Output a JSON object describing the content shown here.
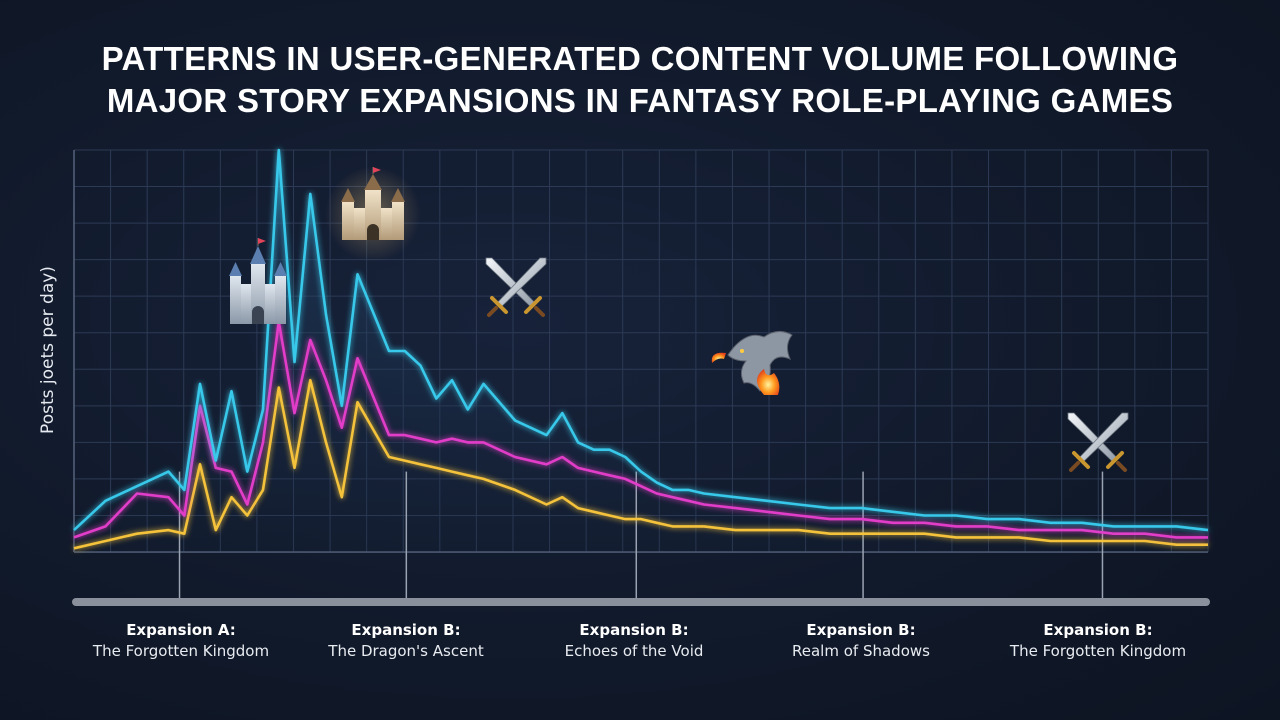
{
  "title_line1": "PATTERNS IN USER-GENERATED CONTENT VOLUME FOLLOWING",
  "title_line2": "MAJOR STORY EXPANSIONS IN FANTASY ROLE-PLAYING GAMES",
  "chart_data": {
    "type": "line",
    "ylabel": "Posts joets per day)",
    "xlabel": "",
    "grid": true,
    "legend": "none",
    "x": [
      0,
      2,
      4,
      6,
      7,
      8,
      9,
      10,
      11,
      12,
      13,
      14,
      15,
      16,
      17,
      18,
      20,
      21,
      22,
      23,
      24,
      25,
      26,
      28,
      30,
      31,
      32,
      33,
      34,
      35,
      36,
      37,
      38,
      39,
      40,
      42,
      44,
      46,
      48,
      50,
      52,
      54,
      56,
      58,
      60,
      62,
      64,
      66,
      68,
      70,
      72
    ],
    "series": [
      {
        "color": "#38c8ea",
        "values": [
          0.6,
          1.4,
          1.8,
          2.2,
          1.7,
          4.6,
          2.5,
          4.4,
          2.2,
          3.9,
          11.0,
          5.2,
          9.8,
          6.5,
          4.0,
          7.6,
          5.5,
          5.5,
          5.1,
          4.2,
          4.7,
          3.9,
          4.6,
          3.6,
          3.2,
          3.8,
          3.0,
          2.8,
          2.8,
          2.6,
          2.2,
          1.9,
          1.7,
          1.7,
          1.6,
          1.5,
          1.4,
          1.3,
          1.2,
          1.2,
          1.1,
          1.0,
          1.0,
          0.9,
          0.9,
          0.8,
          0.8,
          0.7,
          0.7,
          0.7,
          0.6
        ]
      },
      {
        "color": "#e23cc8",
        "values": [
          0.4,
          0.7,
          1.6,
          1.5,
          1.0,
          4.0,
          2.3,
          2.2,
          1.3,
          3.0,
          6.3,
          3.8,
          5.8,
          4.7,
          3.4,
          5.3,
          3.2,
          3.2,
          3.1,
          3.0,
          3.1,
          3.0,
          3.0,
          2.6,
          2.4,
          2.6,
          2.3,
          2.2,
          2.1,
          2.0,
          1.8,
          1.6,
          1.5,
          1.4,
          1.3,
          1.2,
          1.1,
          1.0,
          0.9,
          0.9,
          0.8,
          0.8,
          0.7,
          0.7,
          0.6,
          0.6,
          0.6,
          0.5,
          0.5,
          0.4,
          0.4
        ]
      },
      {
        "color": "#f4c23a",
        "values": [
          0.1,
          0.3,
          0.5,
          0.6,
          0.5,
          2.4,
          0.6,
          1.5,
          1.0,
          1.7,
          4.5,
          2.3,
          4.7,
          3.0,
          1.5,
          4.1,
          2.6,
          2.5,
          2.4,
          2.3,
          2.2,
          2.1,
          2.0,
          1.7,
          1.3,
          1.5,
          1.2,
          1.1,
          1.0,
          0.9,
          0.9,
          0.8,
          0.7,
          0.7,
          0.7,
          0.6,
          0.6,
          0.6,
          0.5,
          0.5,
          0.5,
          0.5,
          0.4,
          0.4,
          0.4,
          0.3,
          0.3,
          0.3,
          0.3,
          0.2,
          0.2
        ]
      }
    ],
    "xlim": [
      0,
      72
    ],
    "ylim": [
      0,
      11
    ],
    "markers": [
      {
        "label": "Expansion A:",
        "sublabel": "The Forgotten Kingdom",
        "x": 6.7,
        "icon": "castle-icon"
      },
      {
        "label": "Expansion B:",
        "sublabel": "The Dragon's Ascent",
        "x": 21.1,
        "icon": "castle-icon"
      },
      {
        "label": "Expansion B:",
        "sublabel": "Echoes of the Void",
        "x": 35.7,
        "icon": "crossed-swords-icon"
      },
      {
        "label": "Expansion B:",
        "sublabel": "Realm of Shadows",
        "x": 50.1,
        "icon": "dragon-icon"
      },
      {
        "label": "Expansion B:",
        "sublabel": "The Forgotten Kingdom",
        "x": 65.3,
        "icon": "crossed-swords-icon"
      }
    ]
  },
  "colors": {
    "grid": "#2c3a55",
    "axis": "#9aa3b2",
    "cyan": "#38c8ea",
    "magenta": "#e23cc8",
    "gold": "#f4c23a"
  }
}
